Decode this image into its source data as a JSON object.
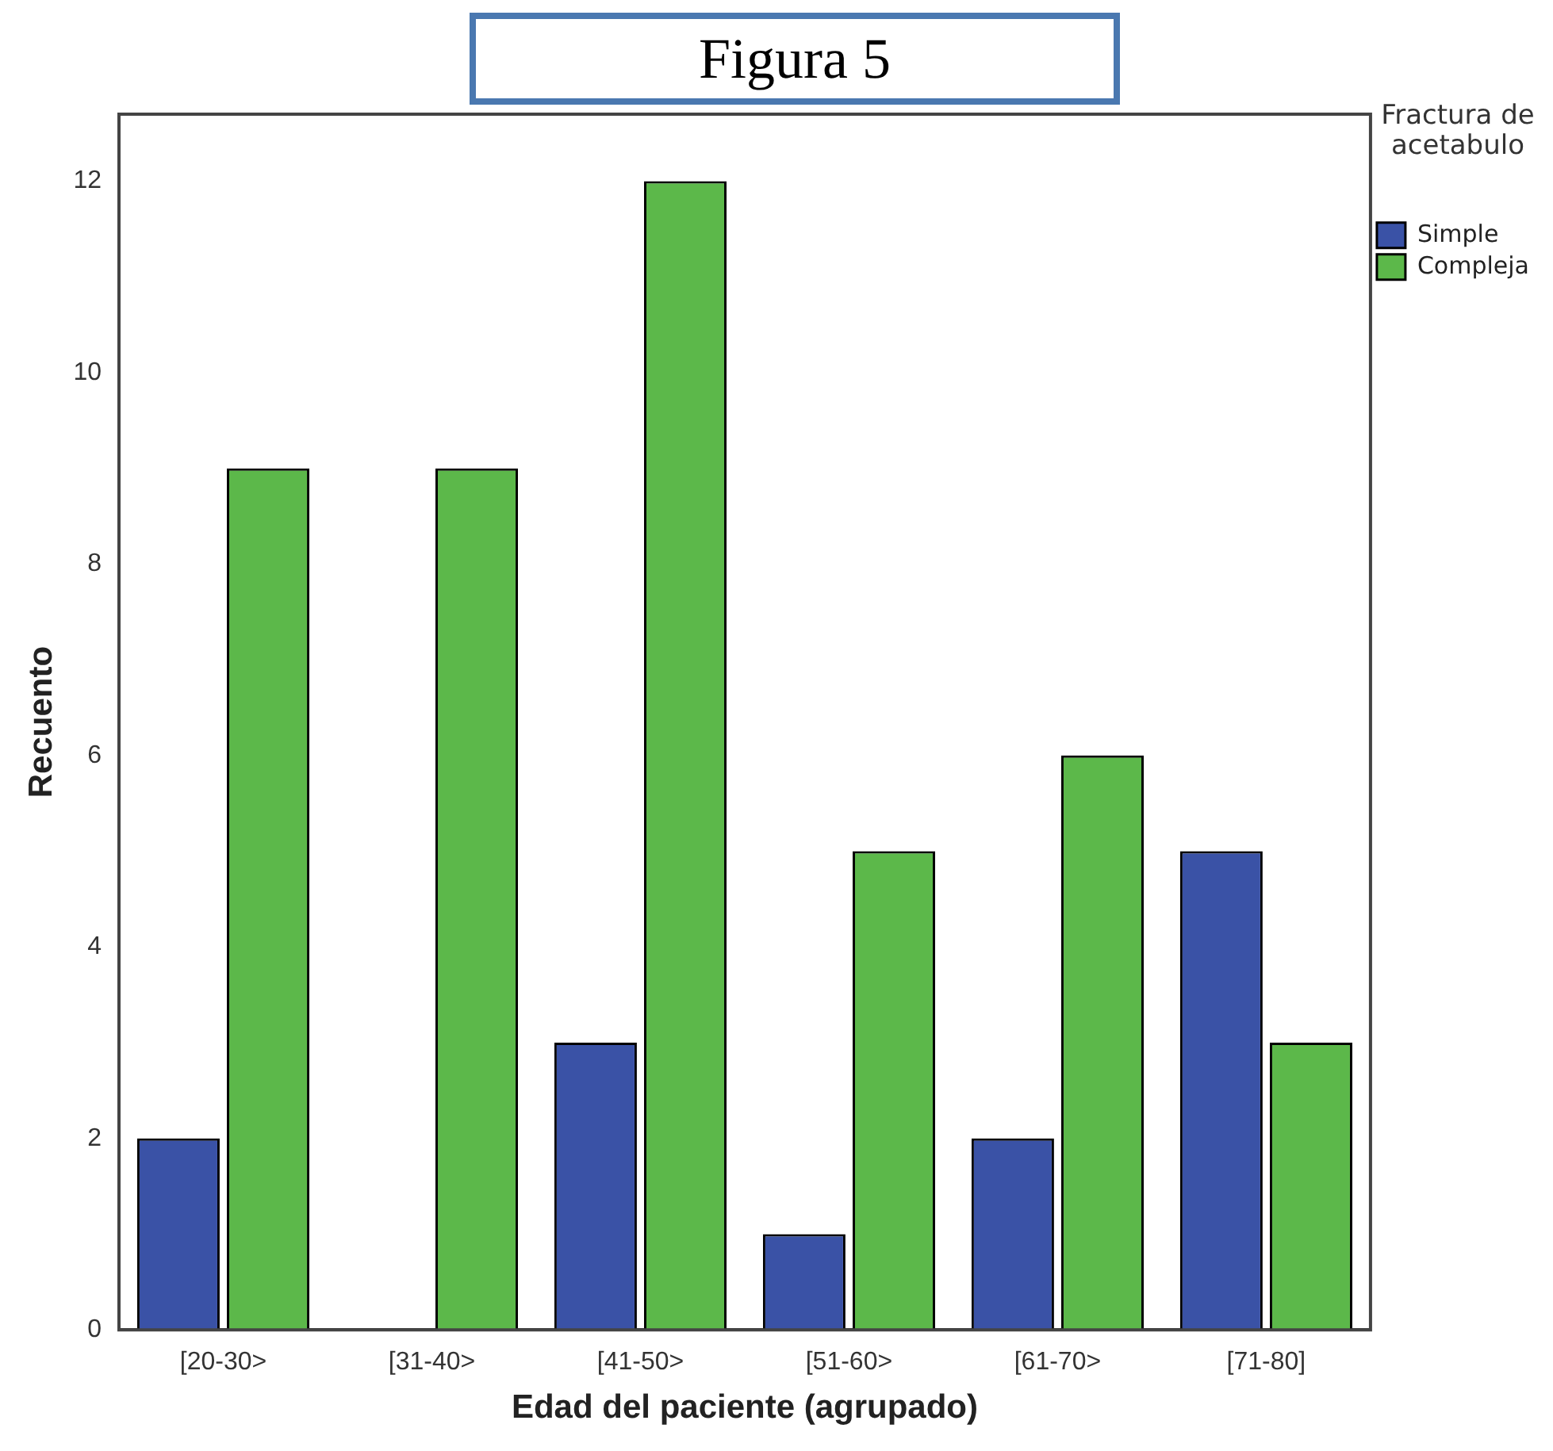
{
  "chart_data": {
    "type": "bar",
    "title": "Figura 5",
    "xlabel": "Edad del paciente (agrupado)",
    "ylabel": "Recuento",
    "legend_title": "Fractura de acetabulo",
    "categories": [
      "[20-30>",
      "[31-40>",
      "[41-50>",
      "[51-60>",
      "[61-70>",
      "[71-80]"
    ],
    "series": [
      {
        "name": "Simple",
        "color": "#3a52a6",
        "values": [
          2,
          0,
          3,
          1,
          2,
          5
        ]
      },
      {
        "name": "Compleja",
        "color": "#5cb84a",
        "values": [
          9,
          9,
          12,
          5,
          6,
          3
        ]
      }
    ],
    "ylim": [
      0,
      12.7
    ],
    "yticks": [
      0,
      2,
      4,
      6,
      8,
      10,
      12
    ],
    "grid": false,
    "legend": "top right"
  }
}
